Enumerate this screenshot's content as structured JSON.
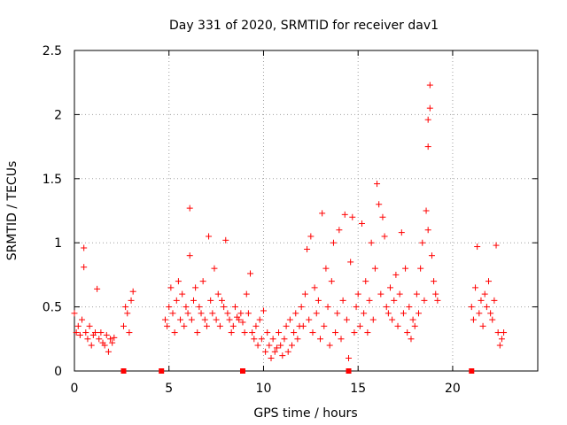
{
  "chart_data": {
    "type": "scatter",
    "title": "Day 331 of 2020, SRMTID for receiver dav1",
    "xlabel": "GPS time / hours",
    "ylabel": "SRMTID / TECUs",
    "xlim": [
      0,
      24.5
    ],
    "ylim": [
      0,
      2.5
    ],
    "xticks": [
      "0",
      "5",
      "10",
      "15",
      "20"
    ],
    "xtick_values": [
      0,
      5,
      10,
      15,
      20
    ],
    "yticks": [
      "0",
      "0.5",
      "1",
      "1.5",
      "2",
      "2.5"
    ],
    "ytick_values": [
      0,
      0.5,
      1,
      1.5,
      2,
      2.5
    ],
    "grid": true,
    "marker": "+",
    "color": "#ff0000",
    "gap_markers_x": [
      2.6,
      4.6,
      8.9,
      14.5,
      21.0
    ],
    "series": [
      {
        "name": "dav1",
        "x": [
          0.0,
          0.1,
          0.2,
          0.3,
          0.4,
          0.5,
          0.5,
          0.6,
          0.7,
          0.8,
          0.9,
          1.0,
          1.1,
          1.2,
          1.3,
          1.4,
          1.5,
          1.6,
          1.7,
          1.8,
          1.9,
          2.0,
          2.1,
          2.6,
          2.7,
          2.8,
          2.9,
          3.0,
          3.1,
          4.8,
          4.9,
          5.0,
          5.1,
          5.2,
          5.3,
          5.4,
          5.5,
          5.6,
          5.7,
          5.8,
          5.9,
          6.0,
          6.1,
          6.1,
          6.2,
          6.3,
          6.4,
          6.5,
          6.6,
          6.7,
          6.8,
          6.9,
          7.0,
          7.1,
          7.2,
          7.3,
          7.4,
          7.5,
          7.6,
          7.7,
          7.8,
          7.9,
          8.0,
          8.1,
          8.2,
          8.3,
          8.4,
          8.5,
          8.6,
          8.7,
          8.8,
          8.9,
          9.0,
          9.1,
          9.2,
          9.3,
          9.4,
          9.5,
          9.6,
          9.7,
          9.8,
          9.9,
          10.0,
          10.1,
          10.2,
          10.3,
          10.4,
          10.5,
          10.6,
          10.7,
          10.8,
          10.9,
          11.0,
          11.1,
          11.2,
          11.3,
          11.4,
          11.5,
          11.6,
          11.7,
          11.8,
          11.9,
          12.0,
          12.1,
          12.2,
          12.3,
          12.4,
          12.5,
          12.6,
          12.7,
          12.8,
          12.9,
          13.0,
          13.1,
          13.2,
          13.3,
          13.4,
          13.5,
          13.6,
          13.7,
          13.8,
          13.9,
          14.0,
          14.1,
          14.2,
          14.3,
          14.4,
          14.5,
          14.6,
          14.7,
          14.8,
          14.9,
          15.0,
          15.1,
          15.2,
          15.3,
          15.4,
          15.5,
          15.6,
          15.7,
          15.8,
          15.9,
          16.0,
          16.1,
          16.2,
          16.3,
          16.4,
          16.5,
          16.6,
          16.7,
          16.8,
          16.9,
          17.0,
          17.1,
          17.2,
          17.3,
          17.4,
          17.5,
          17.6,
          17.7,
          17.8,
          17.9,
          18.0,
          18.1,
          18.2,
          18.3,
          18.4,
          18.5,
          18.6,
          18.7,
          18.7,
          18.7,
          18.8,
          18.8,
          18.9,
          19.0,
          19.1,
          19.2,
          21.0,
          21.1,
          21.2,
          21.3,
          21.4,
          21.5,
          21.6,
          21.7,
          21.8,
          21.9,
          22.0,
          22.1,
          22.2,
          22.3,
          22.4,
          22.5,
          22.6,
          22.7
        ],
        "y": [
          0.45,
          0.3,
          0.35,
          0.28,
          0.4,
          0.96,
          0.81,
          0.3,
          0.25,
          0.35,
          0.2,
          0.28,
          0.3,
          0.64,
          0.25,
          0.3,
          0.22,
          0.2,
          0.28,
          0.15,
          0.25,
          0.22,
          0.26,
          0.35,
          0.5,
          0.45,
          0.3,
          0.55,
          0.62,
          0.4,
          0.35,
          0.5,
          0.65,
          0.45,
          0.3,
          0.55,
          0.7,
          0.4,
          0.6,
          0.35,
          0.5,
          0.45,
          1.27,
          0.9,
          0.4,
          0.55,
          0.65,
          0.3,
          0.5,
          0.45,
          0.7,
          0.4,
          0.35,
          1.05,
          0.55,
          0.45,
          0.8,
          0.4,
          0.6,
          0.35,
          0.55,
          0.5,
          1.02,
          0.45,
          0.4,
          0.3,
          0.35,
          0.5,
          0.42,
          0.4,
          0.45,
          0.38,
          0.3,
          0.6,
          0.45,
          0.76,
          0.3,
          0.25,
          0.35,
          0.2,
          0.4,
          0.25,
          0.47,
          0.15,
          0.3,
          0.2,
          0.1,
          0.25,
          0.15,
          0.18,
          0.3,
          0.2,
          0.12,
          0.25,
          0.35,
          0.15,
          0.4,
          0.2,
          0.3,
          0.45,
          0.25,
          0.35,
          0.5,
          0.35,
          0.6,
          0.95,
          0.4,
          1.05,
          0.3,
          0.65,
          0.45,
          0.55,
          0.25,
          1.23,
          0.35,
          0.8,
          0.5,
          0.2,
          0.7,
          1.0,
          0.3,
          0.45,
          1.1,
          0.25,
          0.55,
          1.22,
          0.4,
          0.1,
          0.85,
          1.2,
          0.3,
          0.5,
          0.6,
          0.35,
          1.15,
          0.45,
          0.7,
          0.3,
          0.55,
          1.0,
          0.4,
          0.8,
          1.46,
          1.3,
          0.6,
          1.2,
          1.05,
          0.5,
          0.45,
          0.65,
          0.4,
          0.55,
          0.75,
          0.35,
          0.6,
          1.08,
          0.45,
          0.8,
          0.3,
          0.5,
          0.25,
          0.4,
          0.35,
          0.6,
          0.45,
          0.8,
          1.0,
          0.55,
          1.25,
          1.1,
          1.75,
          1.96,
          2.23,
          2.05,
          0.9,
          0.7,
          0.6,
          0.55,
          0.5,
          0.4,
          0.65,
          0.97,
          0.45,
          0.55,
          0.35,
          0.6,
          0.5,
          0.7,
          0.45,
          0.4,
          0.55,
          0.98,
          0.3,
          0.2,
          0.25,
          0.3
        ]
      }
    ]
  }
}
